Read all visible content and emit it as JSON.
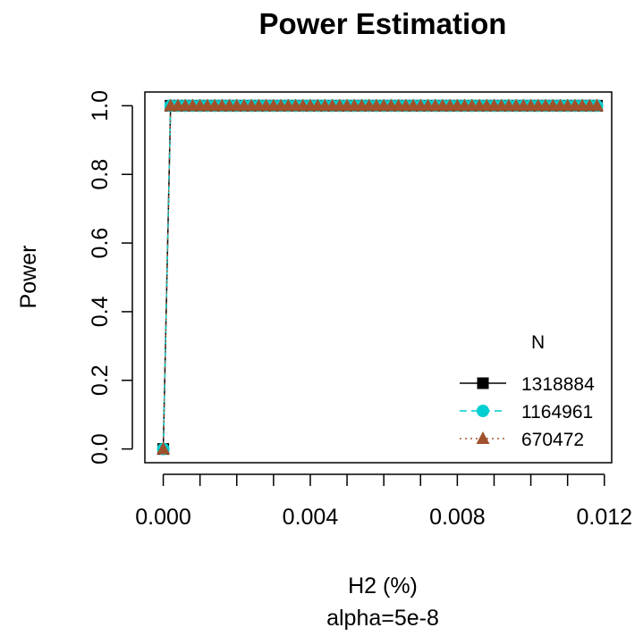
{
  "chart_data": {
    "type": "line",
    "title": "Power Estimation",
    "xlabel": "H2 (%)",
    "sublabel": "alpha=5e-8",
    "ylabel": "Power",
    "xlim": [
      -0.0005,
      0.0122
    ],
    "ylim": [
      -0.04,
      1.04
    ],
    "x_ticks": [
      0.0,
      0.004,
      0.008,
      0.012
    ],
    "x_tick_labels": [
      "0.000",
      "0.004",
      "0.008",
      "0.012"
    ],
    "y_ticks": [
      0.0,
      0.2,
      0.4,
      0.6,
      0.8,
      1.0
    ],
    "y_tick_labels": [
      "0.0",
      "0.2",
      "0.4",
      "0.6",
      "0.8",
      "1.0"
    ],
    "grid": false,
    "legend": {
      "title": "N",
      "placement": "bottom-right"
    },
    "alpha_threshold": 5e-08,
    "x": {
      "start": 0.0,
      "stop": 0.0118,
      "step": 0.0002
    },
    "series": [
      {
        "name": "1318884",
        "sample_size": 1318884,
        "color": "#000000",
        "marker": "square",
        "line": "solid"
      },
      {
        "name": "1164961",
        "sample_size": 1164961,
        "color": "#00CED1",
        "marker": "circle",
        "line": "dashed"
      },
      {
        "name": "670472",
        "sample_size": 670472,
        "color": "#A0522D",
        "marker": "triangle",
        "line": "dotted"
      }
    ]
  }
}
